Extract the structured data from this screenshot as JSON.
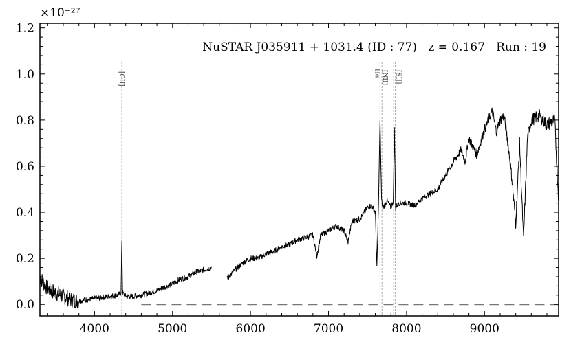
{
  "chart_data": {
    "type": "line",
    "title": "NuSTAR J035911 + 1031.4 (ID : 77)   z = 0.167   Run : 19",
    "xlabel": "",
    "ylabel": "",
    "y_scale_label": "×10⁻²⁷",
    "xlim": [
      3300,
      9950
    ],
    "ylim": [
      -0.05,
      1.22
    ],
    "x_ticks": [
      4000,
      5000,
      6000,
      7000,
      8000,
      9000
    ],
    "x_tick_labels": [
      "4000",
      "5000",
      "6000",
      "7000",
      "8000",
      "9000"
    ],
    "y_ticks": [
      0.0,
      0.2,
      0.4,
      0.6,
      0.8,
      1.0,
      1.2
    ],
    "y_tick_labels": [
      "0.0",
      "0.2",
      "0.4",
      "0.6",
      "0.8",
      "1.0",
      "1.2"
    ],
    "grid": false,
    "zero_line": {
      "y": 0.0,
      "style": "dashed",
      "color": "#777777",
      "x_start": 4600
    },
    "emission_lines": [
      {
        "label": "[OII]",
        "x": 4350
      },
      {
        "label": "Hα",
        "x": 7660
      },
      {
        "label": "[NII]",
        "x": 7685
      },
      {
        "label": "[SII]",
        "x": 7835
      },
      {
        "label": "[SII]",
        "x": 7855
      }
    ],
    "series": [
      {
        "color": "#000000",
        "segments": [
          {
            "x": [
              3300,
              3350,
              3400,
              3500,
              3600,
              3700,
              3800,
              3900,
              4000,
              4100,
              4200,
              4300,
              4340,
              4350,
              4360,
              4400,
              4500,
              4600,
              4700,
              4800,
              4900,
              5000,
              5100,
              5200,
              5300,
              5400,
              5500
            ],
            "y": [
              0.12,
              0.09,
              0.07,
              0.05,
              0.035,
              0.02,
              0.015,
              0.02,
              0.025,
              0.03,
              0.035,
              0.04,
              0.05,
              0.28,
              0.05,
              0.035,
              0.035,
              0.04,
              0.05,
              0.06,
              0.075,
              0.09,
              0.11,
              0.12,
              0.14,
              0.15,
              0.16
            ]
          },
          {
            "x": [
              5700,
              5800,
              5900,
              6000,
              6100,
              6200,
              6300,
              6400,
              6500,
              6600,
              6700,
              6800,
              6850,
              6900,
              7000,
              7100,
              7200,
              7250,
              7300,
              7400,
              7500,
              7550,
              7600,
              7620,
              7640,
              7660,
              7680,
              7700,
              7750,
              7800,
              7830,
              7845,
              7860,
              7900,
              8000,
              8100,
              8200,
              8300,
              8400,
              8500,
              8600,
              8700,
              8750,
              8800,
              8900,
              9000,
              9050,
              9100,
              9150,
              9200,
              9250,
              9300,
              9350,
              9400,
              9450,
              9500,
              9550,
              9600,
              9700,
              9800,
              9900,
              9950
            ],
            "y": [
              0.11,
              0.15,
              0.18,
              0.2,
              0.2,
              0.22,
              0.23,
              0.25,
              0.26,
              0.28,
              0.29,
              0.3,
              0.21,
              0.3,
              0.32,
              0.34,
              0.32,
              0.27,
              0.36,
              0.37,
              0.42,
              0.43,
              0.4,
              0.16,
              0.42,
              0.8,
              0.45,
              0.42,
              0.45,
              0.42,
              0.45,
              0.76,
              0.42,
              0.44,
              0.44,
              0.43,
              0.46,
              0.48,
              0.5,
              0.56,
              0.62,
              0.67,
              0.62,
              0.72,
              0.65,
              0.76,
              0.8,
              0.84,
              0.75,
              0.8,
              0.82,
              0.7,
              0.55,
              0.35,
              0.7,
              0.28,
              0.72,
              0.8,
              0.82,
              0.78,
              0.8,
              0.45
            ]
          }
        ]
      }
    ]
  }
}
